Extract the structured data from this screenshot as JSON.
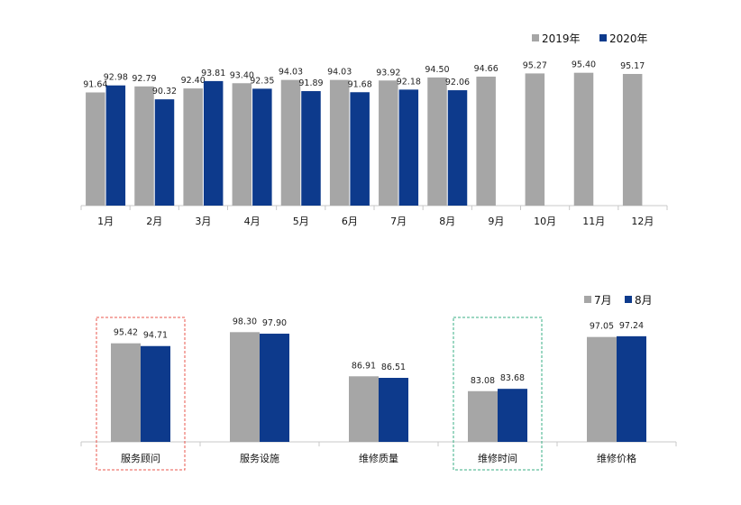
{
  "chart_data": [
    {
      "type": "bar",
      "categories": [
        "1月",
        "2月",
        "3月",
        "4月",
        "5月",
        "6月",
        "7月",
        "8月",
        "9月",
        "10月",
        "11月",
        "12月"
      ],
      "series": [
        {
          "name": "2019年",
          "values": [
            91.64,
            92.79,
            92.4,
            93.4,
            94.03,
            94.03,
            93.92,
            94.5,
            94.66,
            95.27,
            95.4,
            95.17
          ],
          "labels": [
            "91.64",
            "92.79",
            "92.40",
            "93.40",
            "94.03",
            "94.03",
            "93.92",
            "94.50",
            "94.66",
            "95.27",
            "95.40",
            "95.17"
          ],
          "color": "#a6a6a6"
        },
        {
          "name": "2020年",
          "values": [
            92.98,
            90.32,
            93.81,
            92.35,
            91.89,
            91.68,
            92.18,
            92.06,
            null,
            null,
            null,
            null
          ],
          "labels": [
            "92.98",
            "90.32",
            "93.81",
            "92.35",
            "91.89",
            "91.68",
            "92.18",
            "92.06",
            "",
            "",
            "",
            ""
          ],
          "color": "#0d3a8c"
        }
      ],
      "ylim": [
        70,
        100
      ],
      "legend_position": "top-right",
      "grid": false
    },
    {
      "type": "bar",
      "categories": [
        "服务顾问",
        "服务设施",
        "维修质量",
        "维修时间",
        "维修价格"
      ],
      "series": [
        {
          "name": "7月",
          "values": [
            95.42,
            98.3,
            86.91,
            83.08,
            97.05
          ],
          "labels": [
            "95.42",
            "98.30",
            "86.91",
            "83.08",
            "97.05"
          ],
          "color": "#a6a6a6"
        },
        {
          "name": "8月",
          "values": [
            94.71,
            97.9,
            86.51,
            83.68,
            97.24
          ],
          "labels": [
            "94.71",
            "97.90",
            "86.51",
            "83.68",
            "97.24"
          ],
          "color": "#0d3a8c"
        }
      ],
      "ylim": [
        70,
        100
      ],
      "legend_position": "top-right",
      "grid": false,
      "highlights": [
        {
          "category": "服务顾问",
          "color": "#e8574e",
          "style": "dashed"
        },
        {
          "category": "维修时间",
          "color": "#3aaf85",
          "style": "dashed"
        }
      ]
    }
  ]
}
